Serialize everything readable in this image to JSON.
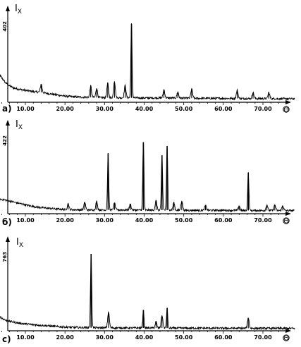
{
  "chart_data": [
    {
      "type": "line",
      "panel_label": "a)",
      "ylabel": "I",
      "ylabel_sub": "X",
      "xlabel": "Θ",
      "ymax_label": "402",
      "ylim": [
        0,
        402
      ],
      "xlim": [
        3,
        78
      ],
      "xticks": [
        "10.00",
        "20.00",
        "30.00",
        "40.00",
        "50.00",
        "60.00",
        "70.00"
      ],
      "baseline": [
        [
          3,
          150
        ],
        [
          4,
          120
        ],
        [
          5,
          95
        ],
        [
          6,
          80
        ],
        [
          7,
          70
        ],
        [
          8,
          65
        ],
        [
          10,
          58
        ],
        [
          12,
          52
        ],
        [
          14,
          48
        ],
        [
          16,
          42
        ],
        [
          18,
          36
        ],
        [
          20,
          30
        ],
        [
          22,
          27
        ],
        [
          24,
          25
        ],
        [
          26,
          24
        ],
        [
          30,
          22
        ],
        [
          35,
          22
        ],
        [
          40,
          21
        ],
        [
          45,
          21
        ],
        [
          50,
          20
        ],
        [
          55,
          19
        ],
        [
          60,
          19
        ],
        [
          65,
          18
        ],
        [
          70,
          18
        ],
        [
          75,
          17
        ],
        [
          78,
          17
        ]
      ],
      "peaks": [
        [
          14.0,
          40
        ],
        [
          26.5,
          55
        ],
        [
          28.0,
          45
        ],
        [
          30.8,
          70
        ],
        [
          32.5,
          80
        ],
        [
          35.2,
          60
        ],
        [
          36.8,
          360
        ],
        [
          45.0,
          40
        ],
        [
          48.5,
          30
        ],
        [
          52.0,
          45
        ],
        [
          63.5,
          40
        ],
        [
          67.5,
          30
        ],
        [
          71.5,
          30
        ]
      ]
    },
    {
      "type": "line",
      "panel_label": "б)",
      "ylabel": "I",
      "ylabel_sub": "X",
      "xlabel": "Θ",
      "ymax_label": "422",
      "ylim": [
        0,
        422
      ],
      "xlim": [
        3,
        78
      ],
      "xticks": [
        "10.00",
        "20.00",
        "30.00",
        "40.00",
        "50.00",
        "60.00",
        "70.00"
      ],
      "baseline": [
        [
          3,
          80
        ],
        [
          5,
          72
        ],
        [
          7,
          62
        ],
        [
          9,
          52
        ],
        [
          11,
          42
        ],
        [
          13,
          35
        ],
        [
          15,
          30
        ],
        [
          18,
          25
        ],
        [
          20,
          22
        ],
        [
          25,
          20
        ],
        [
          30,
          20
        ],
        [
          35,
          20
        ],
        [
          40,
          19
        ],
        [
          45,
          19
        ],
        [
          50,
          18
        ],
        [
          55,
          18
        ],
        [
          60,
          18
        ],
        [
          65,
          17
        ],
        [
          70,
          17
        ],
        [
          75,
          17
        ],
        [
          78,
          16
        ]
      ],
      "peaks": [
        [
          20.8,
          30
        ],
        [
          25.0,
          40
        ],
        [
          28.0,
          45
        ],
        [
          30.9,
          300
        ],
        [
          32.5,
          35
        ],
        [
          36.5,
          30
        ],
        [
          39.8,
          360
        ],
        [
          43.0,
          50
        ],
        [
          44.5,
          290
        ],
        [
          45.8,
          340
        ],
        [
          47.5,
          40
        ],
        [
          49.5,
          50
        ],
        [
          55.5,
          25
        ],
        [
          64.0,
          25
        ],
        [
          66.3,
          200
        ],
        [
          71.0,
          30
        ],
        [
          73.0,
          30
        ],
        [
          75.0,
          25
        ]
      ]
    },
    {
      "type": "line",
      "panel_label": "c)",
      "ylabel": "I",
      "ylabel_sub": "X",
      "xlabel": "Θ",
      "ymax_label": "763",
      "ylim": [
        0,
        763
      ],
      "xlim": [
        3,
        78
      ],
      "xticks": [
        "10.00",
        "20.00",
        "30.00",
        "40.00",
        "50.00",
        "60.00",
        "70.00"
      ],
      "baseline": [
        [
          3,
          160
        ],
        [
          4,
          120
        ],
        [
          5,
          100
        ],
        [
          6,
          90
        ],
        [
          8,
          75
        ],
        [
          10,
          65
        ],
        [
          12,
          58
        ],
        [
          14,
          52
        ],
        [
          16,
          46
        ],
        [
          18,
          40
        ],
        [
          20,
          35
        ],
        [
          22,
          32
        ],
        [
          25,
          30
        ],
        [
          30,
          28
        ],
        [
          35,
          27
        ],
        [
          40,
          27
        ],
        [
          45,
          26
        ],
        [
          50,
          25
        ],
        [
          55,
          25
        ],
        [
          60,
          24
        ],
        [
          65,
          24
        ],
        [
          70,
          23
        ],
        [
          75,
          23
        ],
        [
          78,
          23
        ]
      ],
      "peaks": [
        [
          26.6,
          700
        ],
        [
          31.0,
          150
        ],
        [
          39.8,
          170
        ],
        [
          43.0,
          60
        ],
        [
          44.5,
          120
        ],
        [
          45.8,
          190
        ],
        [
          66.3,
          100
        ]
      ]
    }
  ],
  "colors": {
    "line": "#000000",
    "background": "#ffffff"
  }
}
